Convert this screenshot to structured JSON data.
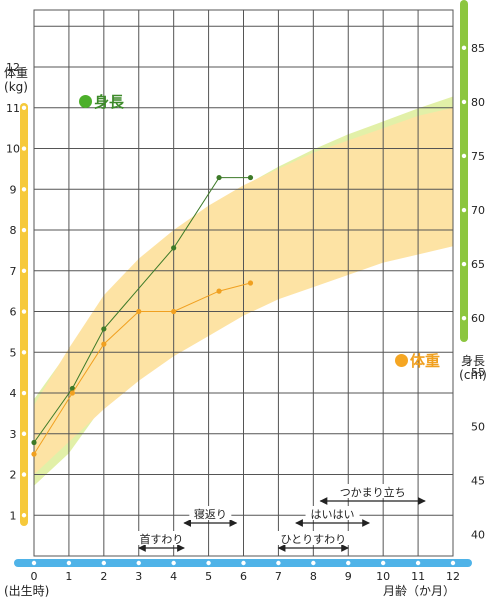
{
  "chart_data": {
    "type": "line",
    "xlabel": "月齢（か月）",
    "x_ticks": [
      "0",
      "1",
      "2",
      "3",
      "4",
      "5",
      "6",
      "7",
      "8",
      "9",
      "10",
      "11",
      "12"
    ],
    "x_zero_note": "(出生時)",
    "xlim": [
      0,
      12
    ],
    "weight_axis": {
      "label": "体重",
      "unit": "(kg)",
      "ylim": [
        0,
        13.4
      ],
      "ticks": [
        1,
        2,
        3,
        4,
        5,
        6,
        7,
        8,
        9,
        10,
        11,
        12
      ]
    },
    "height_axis": {
      "label": "身長",
      "unit": "(cm)",
      "ylim": [
        38,
        88.5
      ],
      "ticks": [
        40,
        45,
        50,
        55,
        60,
        65,
        70,
        75,
        80,
        85
      ]
    },
    "series": [
      {
        "name": "身長",
        "axis": "height",
        "color": "#3d7a28",
        "band_color": "#e2f0a8",
        "x": [
          0,
          1.1,
          2,
          4,
          5.3,
          6.2
        ],
        "values": [
          48.5,
          53.5,
          59,
          66.5,
          73,
          73
        ],
        "band": {
          "x": [
            0,
            1,
            2,
            3,
            4,
            5,
            6,
            7,
            8,
            9,
            10,
            11,
            12
          ],
          "upper": [
            52.5,
            57,
            61.5,
            65,
            67.8,
            70.2,
            72.2,
            74,
            75.6,
            77,
            78.2,
            79.4,
            80.5
          ],
          "lower": [
            44.5,
            47.5,
            52,
            55,
            57.7,
            60,
            62,
            63.8,
            65.4,
            66.8,
            68,
            69.2,
            70
          ]
        }
      },
      {
        "name": "体重",
        "axis": "weight",
        "color": "#f0a020",
        "band_color": "#fde3a4",
        "x": [
          0,
          1.1,
          2,
          3,
          4,
          5.3,
          6.2
        ],
        "values": [
          2.5,
          4,
          5.2,
          6,
          6,
          6.5,
          6.7
        ],
        "band": {
          "x": [
            0,
            1,
            2,
            3,
            4,
            5,
            6,
            7,
            8,
            9,
            10,
            11,
            12
          ],
          "upper": [
            3.7,
            5.1,
            6.4,
            7.3,
            8,
            8.6,
            9.1,
            9.5,
            9.9,
            10.2,
            10.5,
            10.8,
            11
          ],
          "lower": [
            2,
            2.8,
            3.6,
            4.3,
            4.9,
            5.4,
            5.9,
            6.3,
            6.6,
            6.9,
            7.2,
            7.4,
            7.6
          ]
        }
      }
    ],
    "milestones": [
      {
        "label": "首すわり",
        "start": 3,
        "end": 4.3
      },
      {
        "label": "寝返り",
        "start": 4.3,
        "end": 5.8
      },
      {
        "label": "ひとりすわり",
        "start": 7,
        "end": 9
      },
      {
        "label": "はいはい",
        "start": 7.5,
        "end": 9.6
      },
      {
        "label": "つかまり立ち",
        "start": 8.2,
        "end": 11.2
      }
    ]
  }
}
